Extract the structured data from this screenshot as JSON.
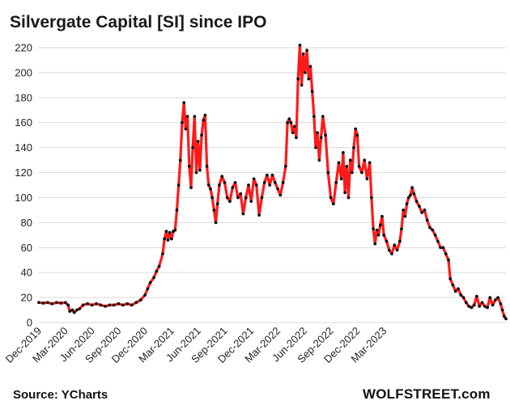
{
  "header": {
    "title": "Silvergate Capital  [SI] since IPO"
  },
  "footer": {
    "source": "Source: YCharts",
    "brand": "WOLFSTREET.com"
  },
  "colors": {
    "line": "#ff1a1a",
    "marker": "#111111",
    "grid": "#d9d9d9"
  },
  "chart_data": {
    "type": "line",
    "title": "Silvergate Capital  [SI] since IPO",
    "xlabel": "",
    "ylabel": "",
    "ylim": [
      0,
      220
    ],
    "y_ticks": [
      0,
      20,
      40,
      60,
      80,
      100,
      120,
      140,
      160,
      180,
      200,
      220
    ],
    "x_ticks": [
      "Dec-2019",
      "Mar-2020",
      "Jun-2020",
      "Sep-2020",
      "Dec-2020",
      "Mar-2021",
      "Jun-2021",
      "Sep-2021",
      "Dec-2021",
      "Mar-2022",
      "Jun-2022",
      "Sep-2022",
      "Dec-2022",
      "Mar-2023"
    ],
    "x_unit": "months since Dec-2019",
    "grid": "horizontal",
    "series": [
      {
        "name": "SI",
        "points": [
          [
            0.0,
            16
          ],
          [
            0.5,
            15.5
          ],
          [
            1.0,
            16
          ],
          [
            1.5,
            15
          ],
          [
            2.0,
            16
          ],
          [
            2.5,
            15.5
          ],
          [
            3.0,
            16
          ],
          [
            3.3,
            14
          ],
          [
            3.5,
            9
          ],
          [
            3.8,
            10
          ],
          [
            4.0,
            8
          ],
          [
            4.3,
            10
          ],
          [
            4.6,
            11
          ],
          [
            5.0,
            14
          ],
          [
            5.5,
            15
          ],
          [
            6.0,
            14
          ],
          [
            6.5,
            15
          ],
          [
            7.0,
            14
          ],
          [
            7.5,
            13
          ],
          [
            8.0,
            14
          ],
          [
            8.5,
            14
          ],
          [
            9.0,
            15
          ],
          [
            9.5,
            14
          ],
          [
            10.0,
            15
          ],
          [
            10.5,
            14
          ],
          [
            11.0,
            16
          ],
          [
            11.5,
            18
          ],
          [
            12.0,
            22
          ],
          [
            12.3,
            27
          ],
          [
            12.6,
            32
          ],
          [
            13.0,
            36
          ],
          [
            13.3,
            41
          ],
          [
            13.6,
            45
          ],
          [
            14.0,
            55
          ],
          [
            14.2,
            67
          ],
          [
            14.4,
            73
          ],
          [
            14.6,
            66
          ],
          [
            14.8,
            72
          ],
          [
            15.0,
            67
          ],
          [
            15.2,
            73
          ],
          [
            15.4,
            74
          ],
          [
            15.6,
            90
          ],
          [
            15.8,
            110
          ],
          [
            16.0,
            130
          ],
          [
            16.2,
            160
          ],
          [
            16.4,
            176
          ],
          [
            16.6,
            155
          ],
          [
            16.8,
            165
          ],
          [
            17.0,
            125
          ],
          [
            17.2,
            108
          ],
          [
            17.4,
            140
          ],
          [
            17.6,
            165
          ],
          [
            17.8,
            120
          ],
          [
            18.0,
            145
          ],
          [
            18.2,
            122
          ],
          [
            18.4,
            150
          ],
          [
            18.6,
            162
          ],
          [
            18.8,
            166
          ],
          [
            19.0,
            125
          ],
          [
            19.2,
            110
          ],
          [
            19.4,
            107
          ],
          [
            19.6,
            100
          ],
          [
            19.8,
            90
          ],
          [
            20.0,
            80
          ],
          [
            20.2,
            95
          ],
          [
            20.4,
            110
          ],
          [
            20.7,
            117
          ],
          [
            21.0,
            112
          ],
          [
            21.3,
            100
          ],
          [
            21.6,
            97
          ],
          [
            21.9,
            108
          ],
          [
            22.2,
            112
          ],
          [
            22.5,
            100
          ],
          [
            22.8,
            103
          ],
          [
            23.1,
            87
          ],
          [
            23.4,
            100
          ],
          [
            23.7,
            110
          ],
          [
            24.0,
            97
          ],
          [
            24.3,
            115
          ],
          [
            24.6,
            110
          ],
          [
            24.9,
            86
          ],
          [
            25.2,
            100
          ],
          [
            25.5,
            112
          ],
          [
            25.8,
            118
          ],
          [
            26.1,
            110
          ],
          [
            26.4,
            118
          ],
          [
            26.7,
            112
          ],
          [
            27.0,
            107
          ],
          [
            27.3,
            102
          ],
          [
            27.6,
            112
          ],
          [
            27.9,
            125
          ],
          [
            28.1,
            160
          ],
          [
            28.3,
            163
          ],
          [
            28.5,
            160
          ],
          [
            28.7,
            152
          ],
          [
            28.9,
            157
          ],
          [
            29.1,
            148
          ],
          [
            29.3,
            195
          ],
          [
            29.5,
            222
          ],
          [
            29.7,
            190
          ],
          [
            29.9,
            215
          ],
          [
            30.1,
            200
          ],
          [
            30.3,
            218
          ],
          [
            30.5,
            195
          ],
          [
            30.7,
            205
          ],
          [
            30.9,
            185
          ],
          [
            31.1,
            165
          ],
          [
            31.3,
            140
          ],
          [
            31.5,
            152
          ],
          [
            31.7,
            130
          ],
          [
            31.9,
            148
          ],
          [
            32.1,
            165
          ],
          [
            32.4,
            150
          ],
          [
            32.7,
            120
          ],
          [
            33.0,
            100
          ],
          [
            33.3,
            95
          ],
          [
            33.6,
            112
          ],
          [
            33.9,
            128
          ],
          [
            34.2,
            115
          ],
          [
            34.4,
            136
          ],
          [
            34.6,
            104
          ],
          [
            34.8,
            125
          ],
          [
            35.0,
            100
          ],
          [
            35.2,
            130
          ],
          [
            35.4,
            120
          ],
          [
            35.6,
            140
          ],
          [
            35.8,
            155
          ],
          [
            36.0,
            150
          ],
          [
            36.2,
            125
          ],
          [
            36.5,
            120
          ],
          [
            36.8,
            130
          ],
          [
            37.1,
            115
          ],
          [
            37.4,
            128
          ],
          [
            37.6,
            100
          ],
          [
            37.8,
            75
          ],
          [
            38.0,
            63
          ],
          [
            38.2,
            74
          ],
          [
            38.4,
            70
          ],
          [
            38.6,
            78
          ],
          [
            38.8,
            85
          ],
          [
            39.0,
            70
          ],
          [
            39.3,
            65
          ],
          [
            39.6,
            58
          ],
          [
            39.9,
            55
          ],
          [
            40.2,
            62
          ],
          [
            40.5,
            58
          ],
          [
            40.8,
            65
          ],
          [
            41.0,
            75
          ],
          [
            41.2,
            90
          ],
          [
            41.4,
            85
          ],
          [
            41.6,
            95
          ],
          [
            41.8,
            100
          ],
          [
            42.0,
            102
          ],
          [
            42.2,
            108
          ],
          [
            42.4,
            103
          ],
          [
            42.7,
            97
          ],
          [
            43.0,
            93
          ],
          [
            43.3,
            88
          ],
          [
            43.6,
            90
          ],
          [
            43.9,
            82
          ],
          [
            44.2,
            76
          ],
          [
            44.5,
            74
          ],
          [
            44.8,
            70
          ],
          [
            45.1,
            65
          ],
          [
            45.4,
            60
          ],
          [
            45.7,
            60
          ],
          [
            46.0,
            55
          ],
          [
            46.3,
            50
          ],
          [
            46.5,
            35
          ],
          [
            46.8,
            30
          ],
          [
            47.1,
            25
          ],
          [
            47.4,
            27
          ],
          [
            47.7,
            22
          ],
          [
            48.0,
            20
          ],
          [
            48.3,
            16
          ],
          [
            48.6,
            13
          ],
          [
            48.9,
            12
          ],
          [
            49.2,
            14
          ],
          [
            49.5,
            21
          ],
          [
            49.8,
            13
          ],
          [
            50.1,
            16
          ],
          [
            50.4,
            13
          ],
          [
            50.7,
            12
          ],
          [
            51.0,
            20
          ],
          [
            51.3,
            14
          ],
          [
            51.6,
            18
          ],
          [
            51.9,
            20
          ],
          [
            52.2,
            15
          ],
          [
            52.4,
            10
          ],
          [
            52.6,
            5
          ],
          [
            52.8,
            3
          ]
        ]
      }
    ]
  }
}
